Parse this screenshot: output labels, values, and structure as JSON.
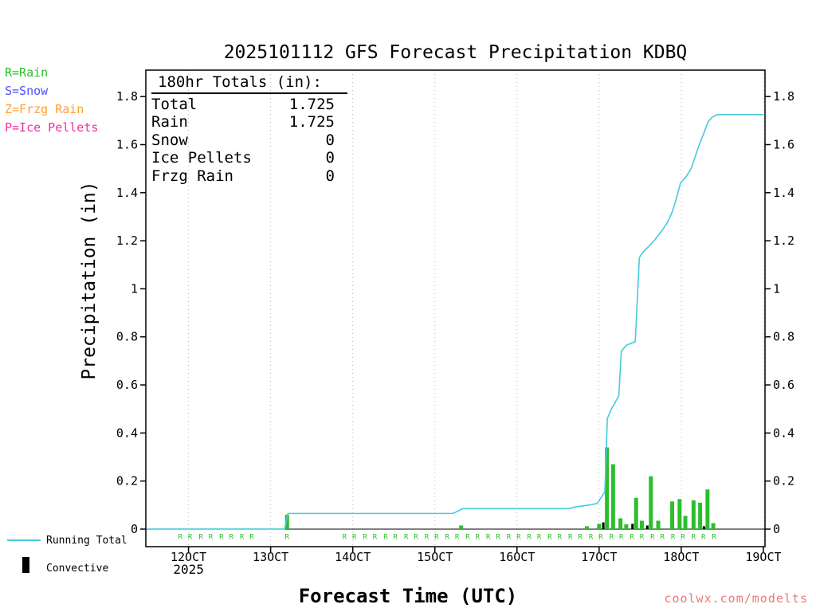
{
  "title": "2025101112 GFS Forecast Precipitation KDBQ",
  "watermark": {
    "text": "coolwx.com/modelts",
    "color": "#ee7878"
  },
  "type_legend": {
    "items": [
      {
        "label": "R=Rain",
        "color": "#2cbe2c"
      },
      {
        "label": "S=Snow",
        "color": "#5050ff"
      },
      {
        "label": "Z=Frzg Rain",
        "color": "#ffa030"
      },
      {
        "label": "P=Ice Pellets",
        "color": "#ee30a0"
      }
    ]
  },
  "series_legend": {
    "running_total_label": "Running Total",
    "convective_label": "Convective"
  },
  "totals_box": {
    "heading": "180hr Totals (in):",
    "rows": [
      {
        "label": "Total",
        "value": "1.725"
      },
      {
        "label": "Rain",
        "value": "1.725"
      },
      {
        "label": "Snow",
        "value": "0"
      },
      {
        "label": "Ice Pellets",
        "value": "0"
      },
      {
        "label": "Frzg Rain",
        "value": "0"
      }
    ]
  },
  "chart_data": {
    "type": "line+bar",
    "title": "2025101112 GFS Forecast Precipitation KDBQ",
    "xlabel": "Forecast Time (UTC)",
    "ylabel": "Precipitation (in)",
    "axis_color": "#000000",
    "grid_color": "#b8b8b8",
    "x_axis": {
      "range": [
        11.48,
        19.02
      ],
      "ticks": [
        12,
        13,
        14,
        15,
        16,
        17,
        18,
        19
      ],
      "tick_labels": [
        "12OCT",
        "13OCT",
        "14OCT",
        "15OCT",
        "16OCT",
        "17OCT",
        "18OCT",
        "19OCT"
      ],
      "year_label": "2025",
      "grid": "dotted-vertical"
    },
    "y_axis": {
      "range": [
        -0.073,
        1.91
      ],
      "ticks": [
        0,
        0.2,
        0.4,
        0.6,
        0.8,
        1,
        1.2,
        1.4,
        1.6,
        1.8
      ],
      "tick_labels": [
        "0",
        "0.2",
        "0.4",
        "0.6",
        "0.8",
        "1",
        "1.2",
        "1.4",
        "1.6",
        "1.8"
      ],
      "label_both_sides": true
    },
    "running_total": {
      "name": "Running Total",
      "color": "#44cbdd",
      "points": [
        [
          11.48,
          0
        ],
        [
          13.17,
          0
        ],
        [
          13.21,
          0.065
        ],
        [
          15.22,
          0.065
        ],
        [
          15.28,
          0.075
        ],
        [
          15.34,
          0.085
        ],
        [
          16.62,
          0.085
        ],
        [
          16.72,
          0.093
        ],
        [
          16.88,
          0.1
        ],
        [
          16.98,
          0.107
        ],
        [
          17.02,
          0.13
        ],
        [
          17.07,
          0.155
        ],
        [
          17.1,
          0.46
        ],
        [
          17.15,
          0.5
        ],
        [
          17.2,
          0.53
        ],
        [
          17.24,
          0.555
        ],
        [
          17.27,
          0.74
        ],
        [
          17.33,
          0.765
        ],
        [
          17.44,
          0.78
        ],
        [
          17.49,
          1.13
        ],
        [
          17.54,
          1.155
        ],
        [
          17.6,
          1.175
        ],
        [
          17.68,
          1.205
        ],
        [
          17.76,
          1.24
        ],
        [
          17.83,
          1.275
        ],
        [
          17.89,
          1.32
        ],
        [
          17.94,
          1.375
        ],
        [
          17.99,
          1.44
        ],
        [
          18.06,
          1.467
        ],
        [
          18.12,
          1.5
        ],
        [
          18.17,
          1.55
        ],
        [
          18.22,
          1.6
        ],
        [
          18.28,
          1.652
        ],
        [
          18.33,
          1.697
        ],
        [
          18.38,
          1.715
        ],
        [
          18.44,
          1.725
        ],
        [
          19.0,
          1.725
        ]
      ]
    },
    "rain_bars": {
      "name": "Rain",
      "color": "#2cbe2c",
      "points": [
        [
          13.2,
          0.06
        ],
        [
          15.32,
          0.015
        ],
        [
          16.85,
          0.012
        ],
        [
          17.0,
          0.022
        ],
        [
          17.095,
          0.34
        ],
        [
          17.17,
          0.27
        ],
        [
          17.26,
          0.045
        ],
        [
          17.33,
          0.02
        ],
        [
          17.45,
          0.13
        ],
        [
          17.52,
          0.035
        ],
        [
          17.63,
          0.22
        ],
        [
          17.72,
          0.035
        ],
        [
          17.89,
          0.115
        ],
        [
          17.98,
          0.125
        ],
        [
          18.05,
          0.055
        ],
        [
          18.15,
          0.12
        ],
        [
          18.23,
          0.11
        ],
        [
          18.32,
          0.165
        ],
        [
          18.39,
          0.025
        ]
      ]
    },
    "convective_bars": {
      "name": "Convective",
      "color": "#000000",
      "points": [
        [
          17.095,
          0.028
        ],
        [
          17.45,
          0.022
        ],
        [
          17.63,
          0.015
        ],
        [
          18.32,
          0.012
        ]
      ]
    },
    "rain_markers": {
      "glyph": "R",
      "color": "#2cbe2c",
      "y": -0.032,
      "x": [
        11.9,
        12.02,
        12.15,
        12.27,
        12.4,
        12.52,
        12.65,
        12.77,
        13.2,
        13.9,
        14.02,
        14.15,
        14.27,
        14.4,
        14.52,
        14.65,
        14.77,
        14.9,
        15.02,
        15.15,
        15.27,
        15.4,
        15.52,
        15.65,
        15.77,
        15.9,
        16.02,
        16.15,
        16.27,
        16.4,
        16.52,
        16.65,
        16.77,
        16.9,
        17.02,
        17.15,
        17.27,
        17.4,
        17.52,
        17.65,
        17.77,
        17.9,
        18.02,
        18.15,
        18.27,
        18.4
      ]
    }
  }
}
